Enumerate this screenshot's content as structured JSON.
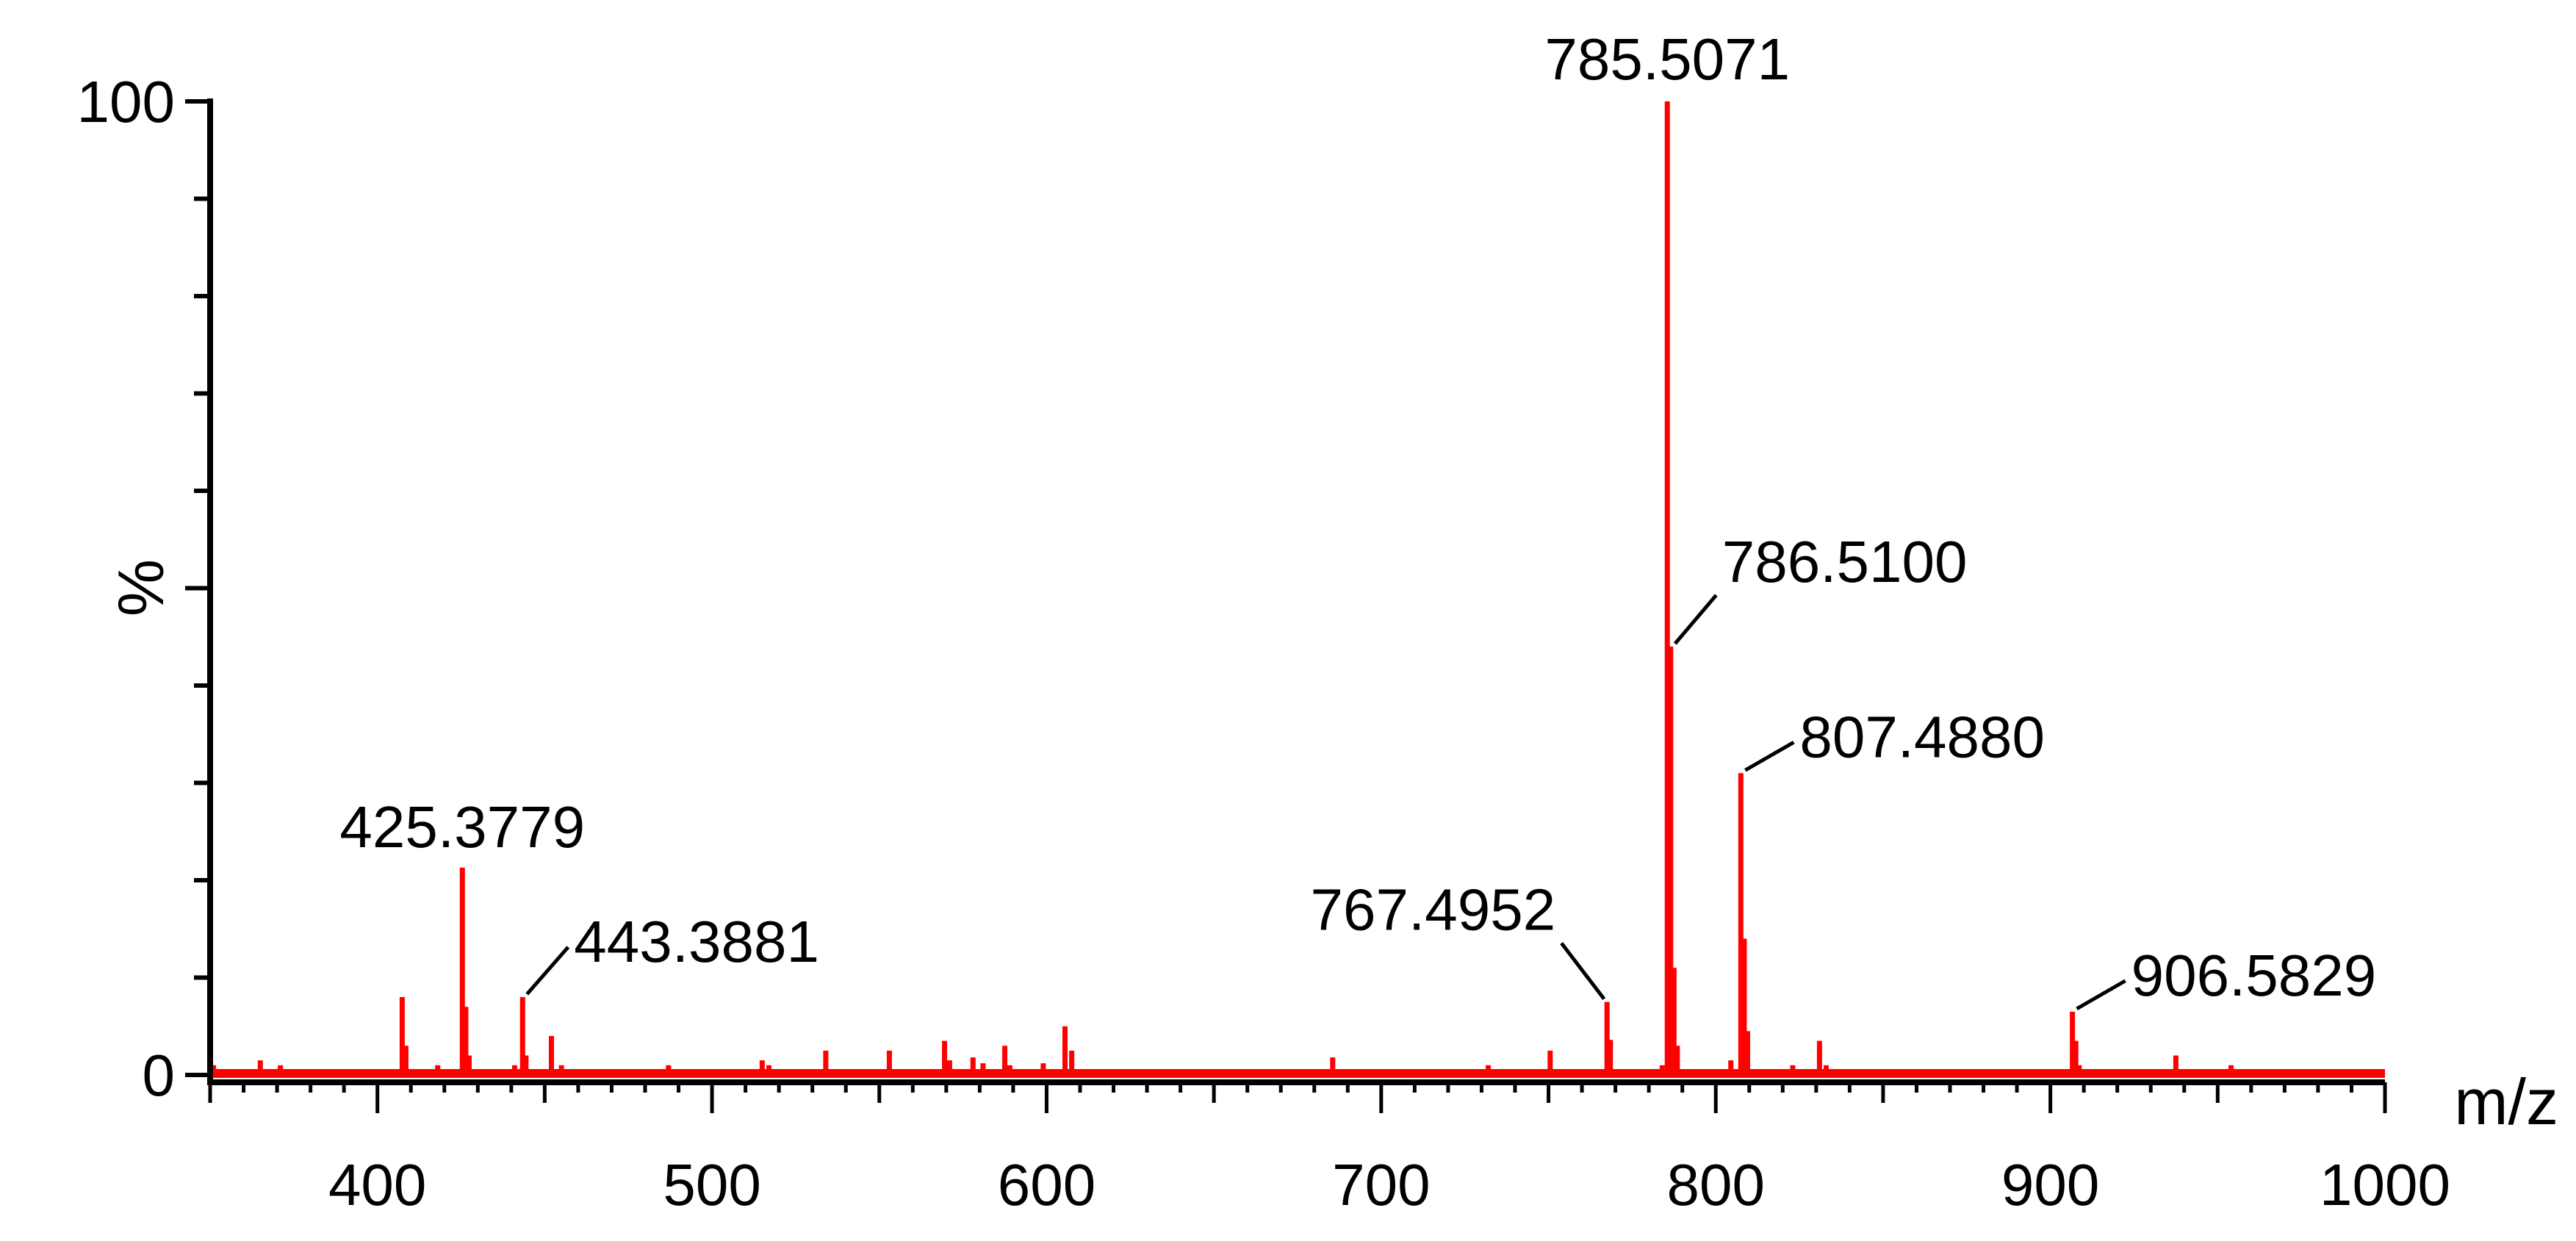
{
  "chart_data": {
    "type": "bar",
    "title": "",
    "xlabel": "m/z",
    "ylabel": "%",
    "xlim": [
      350,
      1000
    ],
    "ylim": [
      0,
      100
    ],
    "x_ticks": [
      400,
      500,
      600,
      700,
      800,
      900,
      1000
    ],
    "x_tick_labels": [
      "400",
      "500",
      "600",
      "700",
      "800",
      "900",
      "1000"
    ],
    "y_ticks": [
      0,
      100
    ],
    "y_tick_labels": [
      "0",
      "100"
    ],
    "grid": false,
    "bar_color": "#ff0000",
    "axis_color": "#000000",
    "peaks": [
      {
        "mz": 351.0,
        "intensity": 1.0
      },
      {
        "mz": 365.0,
        "intensity": 1.5
      },
      {
        "mz": 371.0,
        "intensity": 1.0
      },
      {
        "mz": 407.4,
        "intensity": 8.0
      },
      {
        "mz": 408.5,
        "intensity": 3.0
      },
      {
        "mz": 418.0,
        "intensity": 1.0
      },
      {
        "mz": 425.3779,
        "intensity": 21.3,
        "label": "425.3779"
      },
      {
        "mz": 426.4,
        "intensity": 7.0
      },
      {
        "mz": 427.4,
        "intensity": 2.0
      },
      {
        "mz": 441.0,
        "intensity": 1.0
      },
      {
        "mz": 443.3881,
        "intensity": 8.0,
        "label": "443.3881"
      },
      {
        "mz": 444.4,
        "intensity": 2.0
      },
      {
        "mz": 452.0,
        "intensity": 4.0
      },
      {
        "mz": 455.0,
        "intensity": 1.0
      },
      {
        "mz": 487.0,
        "intensity": 1.0
      },
      {
        "mz": 515.0,
        "intensity": 1.5
      },
      {
        "mz": 517.0,
        "intensity": 1.0
      },
      {
        "mz": 534.0,
        "intensity": 2.5
      },
      {
        "mz": 553.0,
        "intensity": 2.5
      },
      {
        "mz": 569.5,
        "intensity": 3.5
      },
      {
        "mz": 571.0,
        "intensity": 1.5
      },
      {
        "mz": 578.0,
        "intensity": 1.8
      },
      {
        "mz": 581.0,
        "intensity": 1.2
      },
      {
        "mz": 587.5,
        "intensity": 3.0
      },
      {
        "mz": 589.0,
        "intensity": 1.0
      },
      {
        "mz": 599.0,
        "intensity": 1.2
      },
      {
        "mz": 605.5,
        "intensity": 5.0
      },
      {
        "mz": 607.5,
        "intensity": 2.5
      },
      {
        "mz": 685.5,
        "intensity": 1.8
      },
      {
        "mz": 732.0,
        "intensity": 1.0
      },
      {
        "mz": 750.5,
        "intensity": 2.5
      },
      {
        "mz": 767.4952,
        "intensity": 7.5,
        "label": "767.4952"
      },
      {
        "mz": 768.5,
        "intensity": 3.6
      },
      {
        "mz": 784.0,
        "intensity": 1.0
      },
      {
        "mz": 785.5071,
        "intensity": 100.0,
        "label": "785.5071"
      },
      {
        "mz": 786.51,
        "intensity": 44.0,
        "label": "786.5100"
      },
      {
        "mz": 787.5,
        "intensity": 11.0
      },
      {
        "mz": 788.5,
        "intensity": 3.0
      },
      {
        "mz": 804.5,
        "intensity": 1.5
      },
      {
        "mz": 807.488,
        "intensity": 31.0,
        "label": "807.4880"
      },
      {
        "mz": 808.5,
        "intensity": 14.0
      },
      {
        "mz": 809.5,
        "intensity": 4.5
      },
      {
        "mz": 823.0,
        "intensity": 1.0
      },
      {
        "mz": 831.0,
        "intensity": 3.5
      },
      {
        "mz": 833.0,
        "intensity": 1.0
      },
      {
        "mz": 906.5829,
        "intensity": 6.5,
        "label": "906.5829"
      },
      {
        "mz": 907.6,
        "intensity": 3.5
      },
      {
        "mz": 908.6,
        "intensity": 1.0
      },
      {
        "mz": 937.5,
        "intensity": 2.0
      },
      {
        "mz": 954.0,
        "intensity": 1.0
      }
    ]
  }
}
